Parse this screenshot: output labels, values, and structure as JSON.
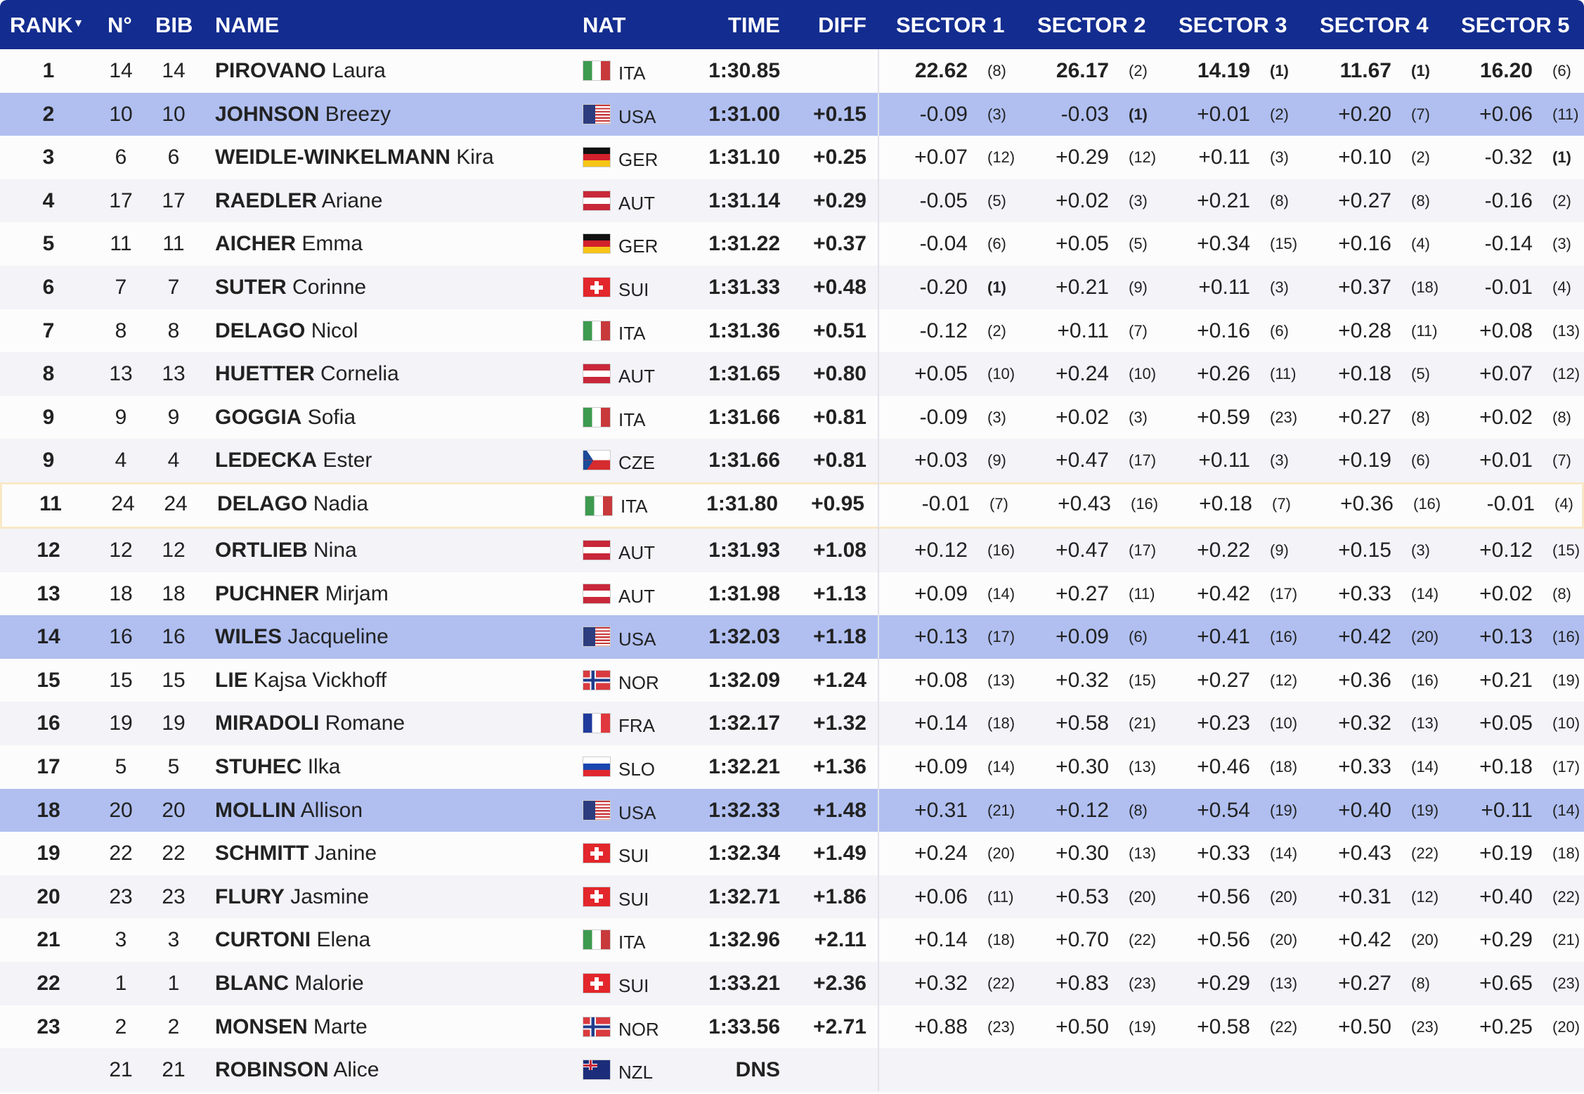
{
  "header": {
    "rank": "RANK",
    "sort_indicator": "▼",
    "no": "N°",
    "bib": "BIB",
    "name": "NAME",
    "nat": "NAT",
    "time": "TIME",
    "diff": "DIFF",
    "sectors": [
      "SECTOR 1",
      "SECTOR 2",
      "SECTOR 3",
      "SECTOR 4",
      "SECTOR 5"
    ]
  },
  "colors": {
    "header_bg": "#132c8f",
    "usa_highlight": "#b0bff0",
    "selected_border": "#f9e8c6"
  },
  "rows": [
    {
      "rank": "1",
      "no": "14",
      "bib": "14",
      "last": "PIROVANO",
      "first": "Laura",
      "nat": "ITA",
      "time": "1:30.85",
      "diff": "",
      "sectors": [
        [
          "22.62",
          "(8)"
        ],
        [
          "26.17",
          "(2)"
        ],
        [
          "14.19",
          "(1)"
        ],
        [
          "11.67",
          "(1)"
        ],
        [
          "16.20",
          "(6)"
        ]
      ]
    },
    {
      "rank": "2",
      "no": "10",
      "bib": "10",
      "last": "JOHNSON",
      "first": "Breezy",
      "nat": "USA",
      "time": "1:31.00",
      "diff": "+0.15",
      "sectors": [
        [
          "-0.09",
          "(3)"
        ],
        [
          "-0.03",
          "(1)"
        ],
        [
          "+0.01",
          "(2)"
        ],
        [
          "+0.20",
          "(7)"
        ],
        [
          "+0.06",
          "(11)"
        ]
      ]
    },
    {
      "rank": "3",
      "no": "6",
      "bib": "6",
      "last": "WEIDLE-WINKELMANN",
      "first": "Kira",
      "nat": "GER",
      "time": "1:31.10",
      "diff": "+0.25",
      "sectors": [
        [
          "+0.07",
          "(12)"
        ],
        [
          "+0.29",
          "(12)"
        ],
        [
          "+0.11",
          "(3)"
        ],
        [
          "+0.10",
          "(2)"
        ],
        [
          "-0.32",
          "(1)"
        ]
      ]
    },
    {
      "rank": "4",
      "no": "17",
      "bib": "17",
      "last": "RAEDLER",
      "first": "Ariane",
      "nat": "AUT",
      "time": "1:31.14",
      "diff": "+0.29",
      "sectors": [
        [
          "-0.05",
          "(5)"
        ],
        [
          "+0.02",
          "(3)"
        ],
        [
          "+0.21",
          "(8)"
        ],
        [
          "+0.27",
          "(8)"
        ],
        [
          "-0.16",
          "(2)"
        ]
      ]
    },
    {
      "rank": "5",
      "no": "11",
      "bib": "11",
      "last": "AICHER",
      "first": "Emma",
      "nat": "GER",
      "time": "1:31.22",
      "diff": "+0.37",
      "sectors": [
        [
          "-0.04",
          "(6)"
        ],
        [
          "+0.05",
          "(5)"
        ],
        [
          "+0.34",
          "(15)"
        ],
        [
          "+0.16",
          "(4)"
        ],
        [
          "-0.14",
          "(3)"
        ]
      ]
    },
    {
      "rank": "6",
      "no": "7",
      "bib": "7",
      "last": "SUTER",
      "first": "Corinne",
      "nat": "SUI",
      "time": "1:31.33",
      "diff": "+0.48",
      "sectors": [
        [
          "-0.20",
          "(1)"
        ],
        [
          "+0.21",
          "(9)"
        ],
        [
          "+0.11",
          "(3)"
        ],
        [
          "+0.37",
          "(18)"
        ],
        [
          "-0.01",
          "(4)"
        ]
      ]
    },
    {
      "rank": "7",
      "no": "8",
      "bib": "8",
      "last": "DELAGO",
      "first": "Nicol",
      "nat": "ITA",
      "time": "1:31.36",
      "diff": "+0.51",
      "sectors": [
        [
          "-0.12",
          "(2)"
        ],
        [
          "+0.11",
          "(7)"
        ],
        [
          "+0.16",
          "(6)"
        ],
        [
          "+0.28",
          "(11)"
        ],
        [
          "+0.08",
          "(13)"
        ]
      ]
    },
    {
      "rank": "8",
      "no": "13",
      "bib": "13",
      "last": "HUETTER",
      "first": "Cornelia",
      "nat": "AUT",
      "time": "1:31.65",
      "diff": "+0.80",
      "sectors": [
        [
          "+0.05",
          "(10)"
        ],
        [
          "+0.24",
          "(10)"
        ],
        [
          "+0.26",
          "(11)"
        ],
        [
          "+0.18",
          "(5)"
        ],
        [
          "+0.07",
          "(12)"
        ]
      ]
    },
    {
      "rank": "9",
      "no": "9",
      "bib": "9",
      "last": "GOGGIA",
      "first": "Sofia",
      "nat": "ITA",
      "time": "1:31.66",
      "diff": "+0.81",
      "sectors": [
        [
          "-0.09",
          "(3)"
        ],
        [
          "+0.02",
          "(3)"
        ],
        [
          "+0.59",
          "(23)"
        ],
        [
          "+0.27",
          "(8)"
        ],
        [
          "+0.02",
          "(8)"
        ]
      ]
    },
    {
      "rank": "9",
      "no": "4",
      "bib": "4",
      "last": "LEDECKA",
      "first": "Ester",
      "nat": "CZE",
      "time": "1:31.66",
      "diff": "+0.81",
      "sectors": [
        [
          "+0.03",
          "(9)"
        ],
        [
          "+0.47",
          "(17)"
        ],
        [
          "+0.11",
          "(3)"
        ],
        [
          "+0.19",
          "(6)"
        ],
        [
          "+0.01",
          "(7)"
        ]
      ]
    },
    {
      "rank": "11",
      "no": "24",
      "bib": "24",
      "last": "DELAGO",
      "first": "Nadia",
      "nat": "ITA",
      "time": "1:31.80",
      "diff": "+0.95",
      "selected": true,
      "sectors": [
        [
          "-0.01",
          "(7)"
        ],
        [
          "+0.43",
          "(16)"
        ],
        [
          "+0.18",
          "(7)"
        ],
        [
          "+0.36",
          "(16)"
        ],
        [
          "-0.01",
          "(4)"
        ]
      ]
    },
    {
      "rank": "12",
      "no": "12",
      "bib": "12",
      "last": "ORTLIEB",
      "first": "Nina",
      "nat": "AUT",
      "time": "1:31.93",
      "diff": "+1.08",
      "sectors": [
        [
          "+0.12",
          "(16)"
        ],
        [
          "+0.47",
          "(17)"
        ],
        [
          "+0.22",
          "(9)"
        ],
        [
          "+0.15",
          "(3)"
        ],
        [
          "+0.12",
          "(15)"
        ]
      ]
    },
    {
      "rank": "13",
      "no": "18",
      "bib": "18",
      "last": "PUCHNER",
      "first": "Mirjam",
      "nat": "AUT",
      "time": "1:31.98",
      "diff": "+1.13",
      "sectors": [
        [
          "+0.09",
          "(14)"
        ],
        [
          "+0.27",
          "(11)"
        ],
        [
          "+0.42",
          "(17)"
        ],
        [
          "+0.33",
          "(14)"
        ],
        [
          "+0.02",
          "(8)"
        ]
      ]
    },
    {
      "rank": "14",
      "no": "16",
      "bib": "16",
      "last": "WILES",
      "first": "Jacqueline",
      "nat": "USA",
      "time": "1:32.03",
      "diff": "+1.18",
      "sectors": [
        [
          "+0.13",
          "(17)"
        ],
        [
          "+0.09",
          "(6)"
        ],
        [
          "+0.41",
          "(16)"
        ],
        [
          "+0.42",
          "(20)"
        ],
        [
          "+0.13",
          "(16)"
        ]
      ]
    },
    {
      "rank": "15",
      "no": "15",
      "bib": "15",
      "last": "LIE",
      "first": "Kajsa Vickhoff",
      "nat": "NOR",
      "time": "1:32.09",
      "diff": "+1.24",
      "sectors": [
        [
          "+0.08",
          "(13)"
        ],
        [
          "+0.32",
          "(15)"
        ],
        [
          "+0.27",
          "(12)"
        ],
        [
          "+0.36",
          "(16)"
        ],
        [
          "+0.21",
          "(19)"
        ]
      ]
    },
    {
      "rank": "16",
      "no": "19",
      "bib": "19",
      "last": "MIRADOLI",
      "first": "Romane",
      "nat": "FRA",
      "time": "1:32.17",
      "diff": "+1.32",
      "sectors": [
        [
          "+0.14",
          "(18)"
        ],
        [
          "+0.58",
          "(21)"
        ],
        [
          "+0.23",
          "(10)"
        ],
        [
          "+0.32",
          "(13)"
        ],
        [
          "+0.05",
          "(10)"
        ]
      ]
    },
    {
      "rank": "17",
      "no": "5",
      "bib": "5",
      "last": "STUHEC",
      "first": "Ilka",
      "nat": "SLO",
      "time": "1:32.21",
      "diff": "+1.36",
      "sectors": [
        [
          "+0.09",
          "(14)"
        ],
        [
          "+0.30",
          "(13)"
        ],
        [
          "+0.46",
          "(18)"
        ],
        [
          "+0.33",
          "(14)"
        ],
        [
          "+0.18",
          "(17)"
        ]
      ]
    },
    {
      "rank": "18",
      "no": "20",
      "bib": "20",
      "last": "MOLLIN",
      "first": "Allison",
      "nat": "USA",
      "time": "1:32.33",
      "diff": "+1.48",
      "sectors": [
        [
          "+0.31",
          "(21)"
        ],
        [
          "+0.12",
          "(8)"
        ],
        [
          "+0.54",
          "(19)"
        ],
        [
          "+0.40",
          "(19)"
        ],
        [
          "+0.11",
          "(14)"
        ]
      ]
    },
    {
      "rank": "19",
      "no": "22",
      "bib": "22",
      "last": "SCHMITT",
      "first": "Janine",
      "nat": "SUI",
      "time": "1:32.34",
      "diff": "+1.49",
      "sectors": [
        [
          "+0.24",
          "(20)"
        ],
        [
          "+0.30",
          "(13)"
        ],
        [
          "+0.33",
          "(14)"
        ],
        [
          "+0.43",
          "(22)"
        ],
        [
          "+0.19",
          "(18)"
        ]
      ]
    },
    {
      "rank": "20",
      "no": "23",
      "bib": "23",
      "last": "FLURY",
      "first": "Jasmine",
      "nat": "SUI",
      "time": "1:32.71",
      "diff": "+1.86",
      "sectors": [
        [
          "+0.06",
          "(11)"
        ],
        [
          "+0.53",
          "(20)"
        ],
        [
          "+0.56",
          "(20)"
        ],
        [
          "+0.31",
          "(12)"
        ],
        [
          "+0.40",
          "(22)"
        ]
      ]
    },
    {
      "rank": "21",
      "no": "3",
      "bib": "3",
      "last": "CURTONI",
      "first": "Elena",
      "nat": "ITA",
      "time": "1:32.96",
      "diff": "+2.11",
      "sectors": [
        [
          "+0.14",
          "(18)"
        ],
        [
          "+0.70",
          "(22)"
        ],
        [
          "+0.56",
          "(20)"
        ],
        [
          "+0.42",
          "(20)"
        ],
        [
          "+0.29",
          "(21)"
        ]
      ]
    },
    {
      "rank": "22",
      "no": "1",
      "bib": "1",
      "last": "BLANC",
      "first": "Malorie",
      "nat": "SUI",
      "time": "1:33.21",
      "diff": "+2.36",
      "sectors": [
        [
          "+0.32",
          "(22)"
        ],
        [
          "+0.83",
          "(23)"
        ],
        [
          "+0.29",
          "(13)"
        ],
        [
          "+0.27",
          "(8)"
        ],
        [
          "+0.65",
          "(23)"
        ]
      ]
    },
    {
      "rank": "23",
      "no": "2",
      "bib": "2",
      "last": "MONSEN",
      "first": "Marte",
      "nat": "NOR",
      "time": "1:33.56",
      "diff": "+2.71",
      "sectors": [
        [
          "+0.88",
          "(23)"
        ],
        [
          "+0.50",
          "(19)"
        ],
        [
          "+0.58",
          "(22)"
        ],
        [
          "+0.50",
          "(23)"
        ],
        [
          "+0.25",
          "(20)"
        ]
      ]
    },
    {
      "rank": "",
      "no": "21",
      "bib": "21",
      "last": "ROBINSON",
      "first": "Alice",
      "nat": "NZL",
      "time": "DNS",
      "diff": "",
      "sectors": []
    }
  ]
}
